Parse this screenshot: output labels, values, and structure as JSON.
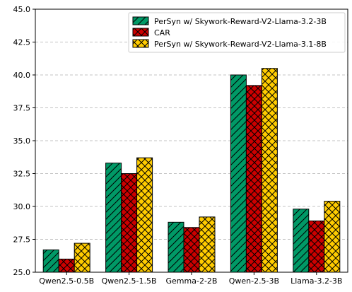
{
  "chart_data": {
    "type": "bar",
    "title": "",
    "xlabel": "",
    "ylabel": "",
    "categories": [
      "Qwen2.5-0.5B",
      "Qwen2.5-1.5B",
      "Gemma-2-2B",
      "Qwen-2.5-3B",
      "Llama-3.2-3B"
    ],
    "ylim": [
      25.0,
      45.0
    ],
    "yticks": [
      "25.0",
      "27.5",
      "30.0",
      "32.5",
      "35.0",
      "37.5",
      "40.0",
      "42.5",
      "45.0"
    ],
    "grid": "y-dashed",
    "legend_position": "top-right",
    "series": [
      {
        "name": "PerSyn w/ Skywork-Reward-V2-Llama-3.2-3B",
        "color": "#009966",
        "hatch": "diagonal",
        "values": [
          26.7,
          33.3,
          28.8,
          40.0,
          29.8
        ]
      },
      {
        "name": "CAR",
        "color": "#cc0000",
        "hatch": "cross",
        "values": [
          26.0,
          32.5,
          28.4,
          39.2,
          28.9
        ]
      },
      {
        "name": "PerSyn w/ Skywork-Reward-V2-Llama-3.1-8B",
        "color": "#ffcc00",
        "hatch": "cross",
        "values": [
          27.2,
          33.7,
          29.2,
          40.5,
          30.4
        ]
      }
    ]
  }
}
